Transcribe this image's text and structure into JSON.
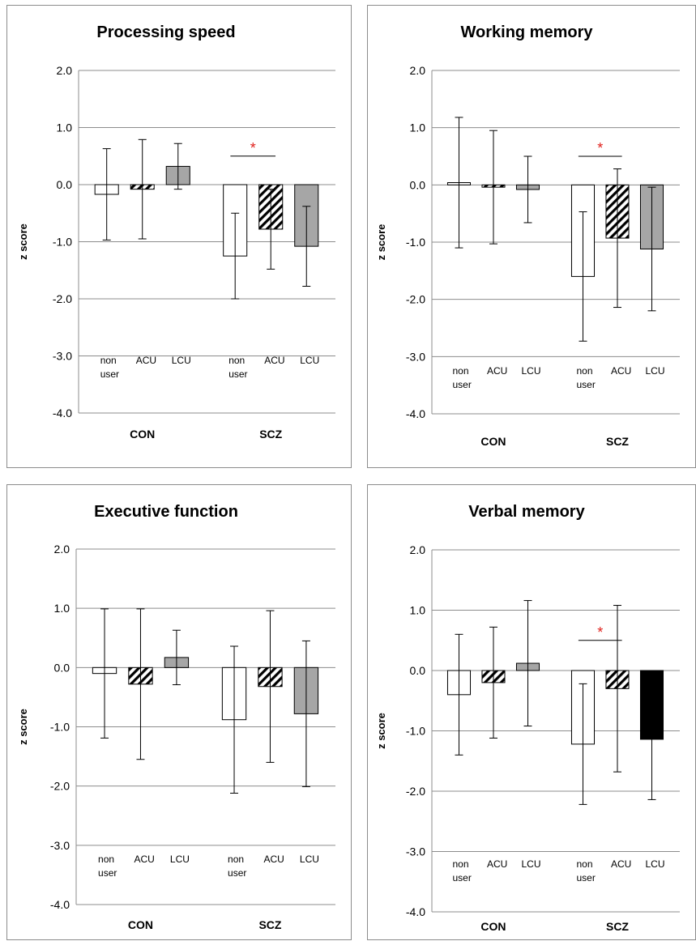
{
  "chart_data": [
    {
      "type": "bar",
      "title": "Processing speed",
      "ylabel": "z score",
      "ylim": [
        -4,
        2
      ],
      "yticks": [
        "2.0",
        "1.0",
        "0.0",
        "-1.0",
        "-2.0",
        "-3.0",
        "-4.0"
      ],
      "groups": [
        "CON",
        "SCZ"
      ],
      "categories": [
        "non user",
        "ACU",
        "LCU"
      ],
      "fills": [
        "white",
        "hatched",
        "#a6a6a6"
      ],
      "series": [
        {
          "group": "CON",
          "values": [
            -0.17,
            -0.08,
            0.32
          ],
          "errors": [
            0.8,
            0.87,
            0.4
          ]
        },
        {
          "group": "SCZ",
          "values": [
            -1.25,
            -0.78,
            -1.08
          ],
          "errors": [
            0.75,
            0.7,
            0.7
          ]
        }
      ],
      "significance": {
        "group": "SCZ",
        "from": 0,
        "to": 1,
        "label": "*"
      }
    },
    {
      "type": "bar",
      "title": "Working memory",
      "ylabel": "z score",
      "ylim": [
        -4,
        2
      ],
      "yticks": [
        "2.0",
        "1.0",
        "0.0",
        "-1.0",
        "-2.0",
        "-3.0",
        "-4.0"
      ],
      "groups": [
        "CON",
        "SCZ"
      ],
      "categories": [
        "non user",
        "ACU",
        "LCU"
      ],
      "fills": [
        "white",
        "hatched",
        "#a6a6a6"
      ],
      "series": [
        {
          "group": "CON",
          "values": [
            0.04,
            -0.04,
            -0.08
          ],
          "errors": [
            1.14,
            0.99,
            0.58
          ]
        },
        {
          "group": "SCZ",
          "values": [
            -1.6,
            -0.93,
            -1.12
          ],
          "errors": [
            1.13,
            1.21,
            1.08
          ]
        }
      ],
      "significance": {
        "group": "SCZ",
        "from": 0,
        "to": 1,
        "label": "*"
      }
    },
    {
      "type": "bar",
      "title": "Executive function",
      "ylabel": "z score",
      "ylim": [
        -4,
        2
      ],
      "yticks": [
        "2.0",
        "1.0",
        "0.0",
        "-1.0",
        "-2.0",
        "-3.0",
        "-4.0"
      ],
      "groups": [
        "CON",
        "SCZ"
      ],
      "categories": [
        "non user",
        "ACU",
        "LCU"
      ],
      "fills": [
        "white",
        "hatched",
        "#a6a6a6"
      ],
      "series": [
        {
          "group": "CON",
          "values": [
            -0.1,
            -0.28,
            0.17
          ],
          "errors": [
            1.09,
            1.27,
            0.46
          ]
        },
        {
          "group": "SCZ",
          "values": [
            -0.88,
            -0.32,
            -0.78
          ],
          "errors": [
            1.24,
            1.28,
            1.23
          ]
        }
      ]
    },
    {
      "type": "bar",
      "title": "Verbal memory",
      "ylabel": "z score",
      "ylim": [
        -4,
        2
      ],
      "yticks": [
        "2.0",
        "1.0",
        "0.0",
        "-1.0",
        "-2.0",
        "-3.0",
        "-4.0"
      ],
      "groups": [
        "CON",
        "SCZ"
      ],
      "categories": [
        "non user",
        "ACU",
        "LCU"
      ],
      "fills": [
        "white",
        "hatched",
        "#a6a6a6"
      ],
      "series": [
        {
          "group": "CON",
          "values": [
            -0.4,
            -0.2,
            0.12
          ],
          "errors": [
            1.0,
            0.92,
            1.04
          ]
        },
        {
          "group": "SCZ",
          "values": [
            -1.22,
            -0.3,
            -1.14
          ],
          "errors": [
            1.0,
            1.38,
            1.0
          ]
        }
      ],
      "fill_overrides": [
        {
          "group": "SCZ",
          "index": 2,
          "fill": "#000000"
        }
      ],
      "significance": {
        "group": "SCZ",
        "from": 0,
        "to": 1,
        "label": "*"
      }
    }
  ]
}
